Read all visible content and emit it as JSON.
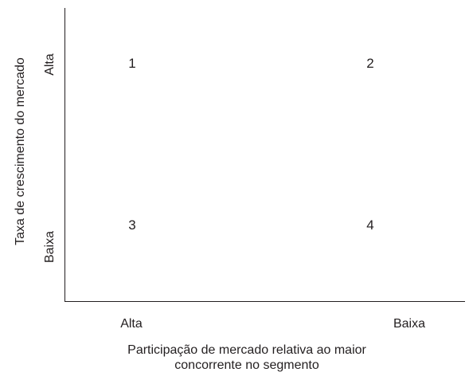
{
  "quadrants": [
    "1",
    "2",
    "3",
    "4"
  ],
  "x_axis": {
    "ticks": [
      "Alta",
      "Baixa"
    ],
    "label_lines": [
      "Participação de mercado relativa ao maior",
      "concorrente no segmento"
    ]
  },
  "y_axis": {
    "ticks": [
      "Alta",
      "Baixa"
    ],
    "label": "Taxa de crescimento do mercado"
  },
  "colors": {
    "ink": "#231f20",
    "background": "#ffffff"
  }
}
